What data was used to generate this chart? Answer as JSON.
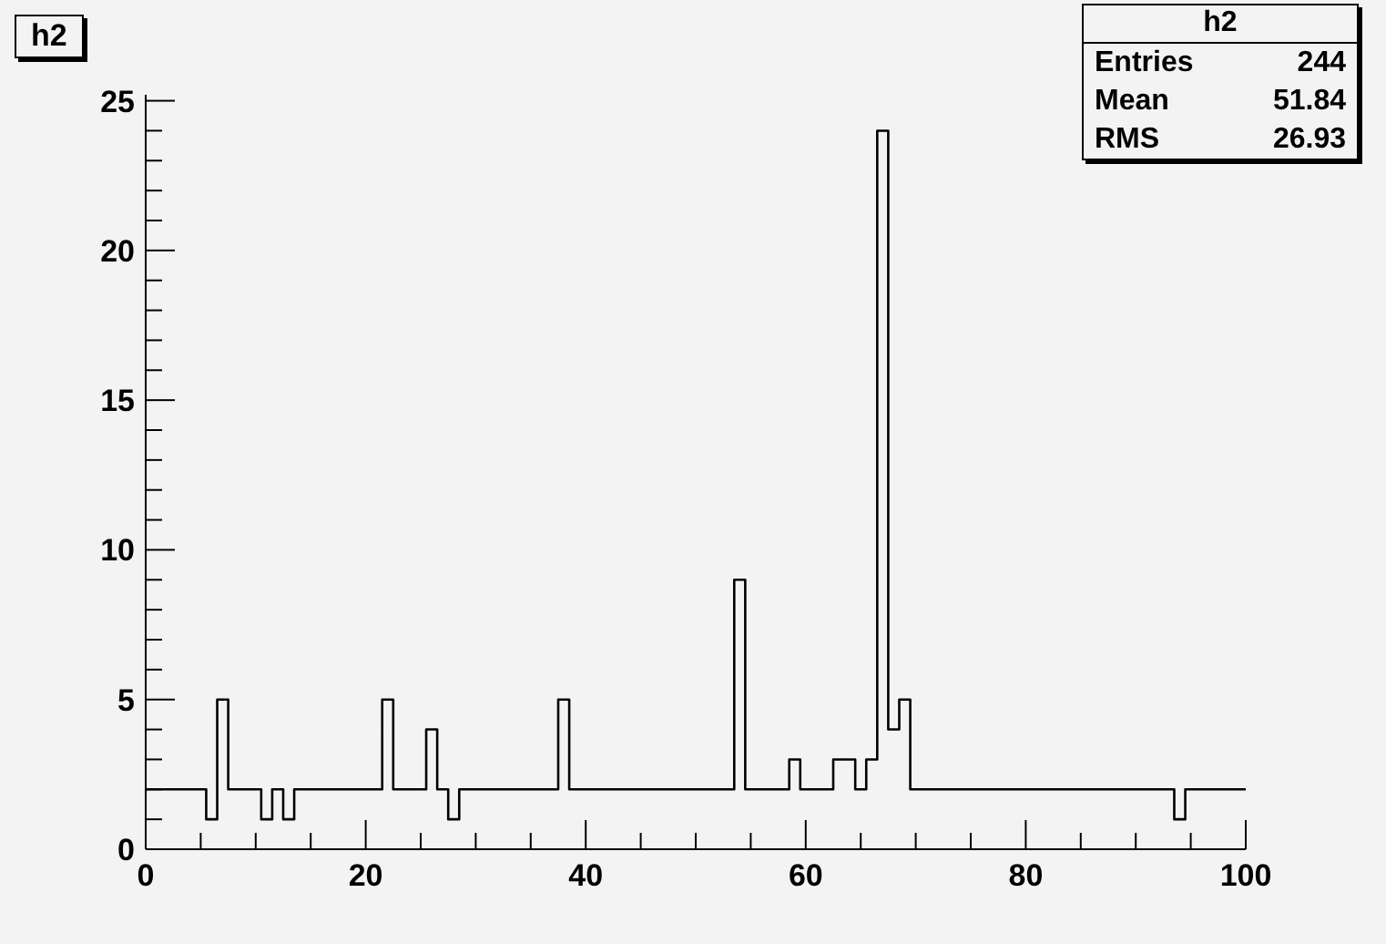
{
  "chart_data": {
    "type": "histogram",
    "title": "h2",
    "annotations": [
      "h2",
      "Entries",
      "244",
      "Mean",
      "51.84",
      "RMS",
      "26.93"
    ],
    "bins": [
      0,
      0.5,
      1.5,
      2.5,
      3.5,
      4.5,
      5.5,
      6.5,
      7.5,
      8.5,
      9.5,
      10.5,
      11.5,
      12.5,
      13.5,
      14.5,
      15.5,
      16.5,
      17.5,
      18.5,
      19.5,
      20.5,
      21.5,
      22.5,
      23.5,
      24.5,
      25.5,
      26.5,
      27.5,
      28.5,
      29.5,
      30.5,
      31.5,
      32.5,
      33.5,
      34.5,
      35.5,
      36.5,
      37.5,
      38.5,
      39.5,
      40.5,
      41.5,
      42.5,
      43.5,
      44.5,
      45.5,
      46.5,
      47.5,
      48.5,
      49.5,
      50.5,
      51.5,
      52.5,
      53.5,
      54.5,
      55.5,
      56.5,
      57.5,
      58.5,
      59.5,
      60.5,
      61.5,
      62.5,
      63.5,
      64.5,
      65.5,
      66.5,
      67.5,
      68.5,
      69.5,
      70.5,
      71.5,
      72.5,
      73.5,
      74.5,
      75.5,
      76.5,
      77.5,
      78.5,
      79.5,
      80.5,
      81.5,
      82.5,
      83.5,
      84.5,
      85.5,
      86.5,
      87.5,
      88.5,
      89.5,
      90.5,
      91.5,
      92.5,
      93.5,
      94.5,
      95.5,
      96.5,
      97.5,
      98.5,
      99.5,
      100
    ],
    "values": [
      2,
      2,
      2,
      2,
      2,
      2,
      1,
      5,
      2,
      2,
      2,
      1,
      2,
      1,
      2,
      2,
      2,
      2,
      2,
      2,
      2,
      2,
      5,
      2,
      2,
      2,
      4,
      2,
      1,
      2,
      2,
      2,
      2,
      2,
      2,
      2,
      2,
      2,
      5,
      2,
      2,
      2,
      2,
      2,
      2,
      2,
      2,
      2,
      2,
      2,
      2,
      2,
      2,
      2,
      9,
      2,
      2,
      2,
      2,
      3,
      2,
      2,
      2,
      3,
      3,
      2,
      3,
      24,
      4,
      5,
      2,
      2,
      2,
      2,
      2,
      2,
      2,
      2,
      2,
      2,
      2,
      2,
      2,
      2,
      2,
      2,
      2,
      2,
      2,
      2,
      2,
      2,
      2,
      2,
      1,
      2,
      2,
      2,
      2,
      2,
      2
    ],
    "color": "#000000",
    "xlim": [
      0,
      100
    ],
    "xticks": [
      0,
      {
        "value": 5,
        "label": null
      },
      {
        "value": 10,
        "label": null
      },
      {
        "value": 15,
        "label": null
      },
      20,
      {
        "value": 25,
        "label": null
      },
      {
        "value": 30,
        "label": null
      },
      {
        "value": 35,
        "label": null
      },
      40,
      {
        "value": 45,
        "label": null
      },
      {
        "value": 50,
        "label": null
      },
      {
        "value": 55,
        "label": null
      },
      60,
      {
        "value": 65,
        "label": null
      },
      {
        "value": 70,
        "label": null
      },
      {
        "value": 75,
        "label": null
      },
      80,
      {
        "value": 85,
        "label": null
      },
      {
        "value": 90,
        "label": null
      },
      {
        "value": 95,
        "label": null
      },
      100
    ],
    "ylim": [
      0,
      25.2
    ],
    "yticks": [
      0,
      {
        "value": 1,
        "label": null
      },
      {
        "value": 2,
        "label": null
      },
      {
        "value": 3,
        "label": null
      },
      {
        "value": 4,
        "label": null
      },
      5,
      {
        "value": 6,
        "label": null
      },
      {
        "value": 7,
        "label": null
      },
      {
        "value": 8,
        "label": null
      },
      {
        "value": 9,
        "label": null
      },
      10,
      {
        "value": 11,
        "label": null
      },
      {
        "value": 12,
        "label": null
      },
      {
        "value": 13,
        "label": null
      },
      {
        "value": 14,
        "label": null
      },
      15,
      {
        "value": 16,
        "label": null
      },
      {
        "value": 17,
        "label": null
      },
      {
        "value": 18,
        "label": null
      },
      {
        "value": 19,
        "label": null
      },
      20,
      {
        "value": 21,
        "label": null
      },
      {
        "value": 22,
        "label": null
      },
      {
        "value": 23,
        "label": null
      },
      {
        "value": 24,
        "label": null
      },
      25
    ]
  }
}
